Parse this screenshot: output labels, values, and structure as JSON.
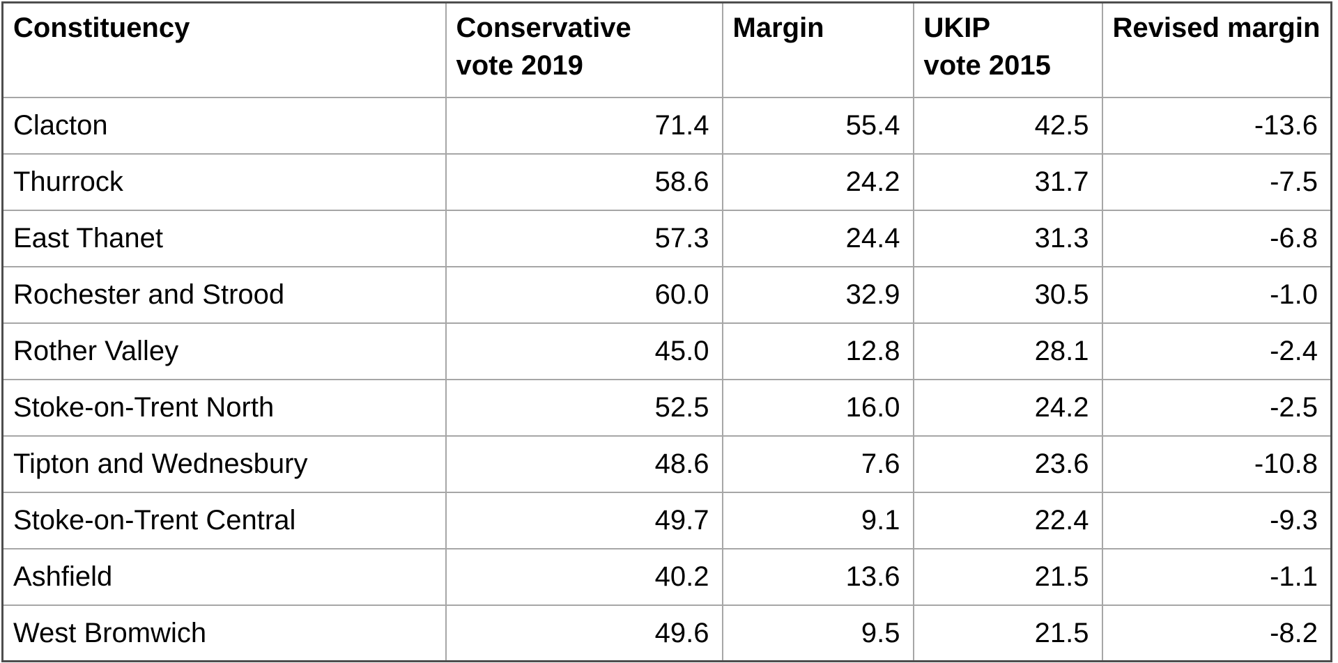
{
  "table": {
    "columns": [
      {
        "id": "constituency",
        "label": "Constituency",
        "label_lines": [
          "Constituency"
        ]
      },
      {
        "id": "conservative_2019",
        "label": "Conservative vote 2019",
        "label_lines": [
          "Conservative",
          "vote 2019"
        ]
      },
      {
        "id": "margin",
        "label": "Margin",
        "label_lines": [
          "Margin"
        ]
      },
      {
        "id": "ukip_2015",
        "label": "UKIP vote 2015",
        "label_lines": [
          "UKIP",
          "vote 2015"
        ]
      },
      {
        "id": "revised_margin",
        "label": "Revised margin",
        "label_lines": [
          "Revised margin"
        ]
      }
    ],
    "rows": [
      [
        "Clacton",
        "71.4",
        "55.4",
        "42.5",
        "-13.6"
      ],
      [
        "Thurrock",
        "58.6",
        "24.2",
        "31.7",
        "-7.5"
      ],
      [
        "East Thanet",
        "57.3",
        "24.4",
        "31.3",
        "-6.8"
      ],
      [
        "Rochester and Strood",
        "60.0",
        "32.9",
        "30.5",
        "-1.0"
      ],
      [
        "Rother Valley",
        "45.0",
        "12.8",
        "28.1",
        "-2.4"
      ],
      [
        "Stoke-on-Trent North",
        "52.5",
        "16.0",
        "24.2",
        "-2.5"
      ],
      [
        "Tipton and Wednesbury",
        "48.6",
        "7.6",
        "23.6",
        "-10.8"
      ],
      [
        "Stoke-on-Trent Central",
        "49.7",
        "9.1",
        "22.4",
        "-9.3"
      ],
      [
        "Ashfield",
        "40.2",
        "13.6",
        "21.5",
        "-1.1"
      ],
      [
        "West Bromwich",
        "49.6",
        "9.5",
        "21.5",
        "-8.2"
      ]
    ]
  },
  "colors": {
    "background": "#ffffff",
    "text": "#000000",
    "border_outer": "#4d4d4d",
    "border_inner": "#a6a6a6"
  }
}
